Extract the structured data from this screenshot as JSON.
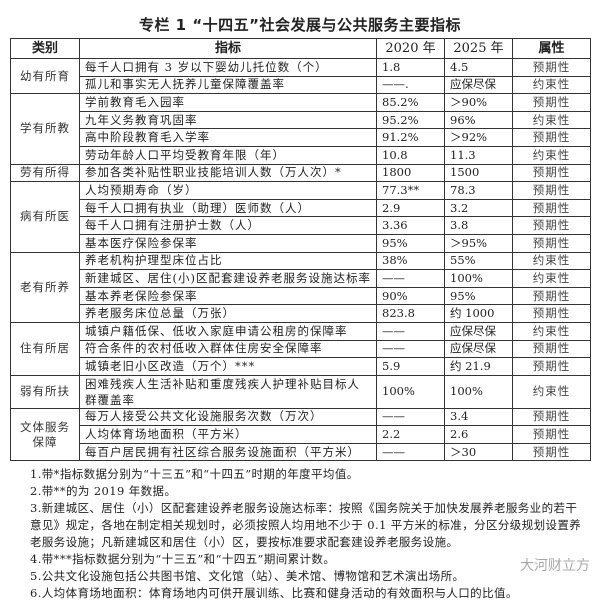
{
  "title": "专栏 1 “十四五”社会发展与公共服务主要指标",
  "headers": [
    "类别",
    "指标",
    "2020 年",
    "2025 年",
    "属性"
  ],
  "groups": [
    {
      "category": "幼有所育",
      "rows": [
        {
          "indicator": "每千人口拥有 3 岁以下婴幼儿托位数（个）",
          "y2020": "1.8",
          "y2025": "4.5",
          "attr": "预期性"
        },
        {
          "indicator": "孤儿和事实无人抚养儿童保障覆盖率",
          "y2020": "——.",
          "y2025": "应保尽保",
          "attr": "约束性"
        }
      ]
    },
    {
      "category": "学有所教",
      "rows": [
        {
          "indicator": "学前教育毛入园率",
          "y2020": "85.2%",
          "y2025": "＞90%",
          "attr": "预期性"
        },
        {
          "indicator": "九年义务教育巩固率",
          "y2020": "95.2%",
          "y2025": "96%",
          "attr": "约束性"
        },
        {
          "indicator": "高中阶段教育毛入学率",
          "y2020": "91.2%",
          "y2025": "＞92%",
          "attr": "预期性"
        },
        {
          "indicator": "劳动年龄人口平均受教育年限（年）",
          "y2020": "10.8",
          "y2025": "11.3",
          "attr": "约束性"
        }
      ]
    },
    {
      "category": "劳有所得",
      "rows": [
        {
          "indicator": "参加各类补贴性职业技能培训人数（万人次）*",
          "y2020": "1800",
          "y2025": "1500",
          "attr": "预期性"
        }
      ]
    },
    {
      "category": "病有所医",
      "rows": [
        {
          "indicator": "人均预期寿命（岁）",
          "y2020": "77.3**",
          "y2025": "78.3",
          "attr": "预期性"
        },
        {
          "indicator": "每千人口拥有执业（助理）医师数（人）",
          "y2020": "2.9",
          "y2025": "3.2",
          "attr": "预期性"
        },
        {
          "indicator": "每千人口拥有注册护士数（人）",
          "y2020": "3.36",
          "y2025": "3.8",
          "attr": "预期性"
        },
        {
          "indicator": "基本医疗保险参保率",
          "y2020": "95%",
          "y2025": "＞95%",
          "attr": "预期性"
        }
      ]
    },
    {
      "category": "老有所养",
      "rows": [
        {
          "indicator": "养老机构护理型床位占比",
          "y2020": "38%",
          "y2025": "55%",
          "attr": "约束性"
        },
        {
          "indicator": "新建城区、居住(小)区配套建设养老服务设施达标率",
          "y2020": "——",
          "y2025": "100%",
          "attr": "约束性"
        },
        {
          "indicator": "基本养老保险参保率",
          "y2020": "90%",
          "y2025": "95%",
          "attr": "预期性"
        },
        {
          "indicator": "养老服务床位总量（万张）",
          "y2020": "823.8",
          "y2025": "约 1000",
          "attr": "预期性"
        }
      ]
    },
    {
      "category": "住有所居",
      "rows": [
        {
          "indicator": "城镇户籍低保、低收入家庭申请公租房的保障率",
          "y2020": "——",
          "y2025": "应保尽保",
          "attr": "约束性"
        },
        {
          "indicator": "符合条件的农村低收入群体住房安全保障率",
          "y2020": "——",
          "y2025": "应保尽保",
          "attr": "预期性"
        },
        {
          "indicator": "城镇老旧小区改造（万个）***",
          "y2020": "5.9",
          "y2025": "约 21.9",
          "attr": "预期性"
        }
      ]
    },
    {
      "category": "弱有所扶",
      "rows": [
        {
          "indicator": "困难残疾人生活补贴和重度残疾人护理补贴目标人群覆盖率",
          "y2020": "100%",
          "y2025": "100%",
          "attr": "约束性"
        }
      ]
    },
    {
      "category": "文体服务保障",
      "rows": [
        {
          "indicator": "每万人接受公共文化设施服务次数（万次）",
          "y2020": "——",
          "y2025": "3.4",
          "attr": "预期性"
        },
        {
          "indicator": "人均体育场地面积（平方米）",
          "y2020": "2.2",
          "y2025": "2.6",
          "attr": "预期性"
        },
        {
          "indicator": "每百户居民拥有社区综合服务设施面积（平方米）",
          "y2020": "——",
          "y2025": "＞30",
          "attr": "预期性"
        }
      ]
    }
  ],
  "notes": [
    "1.带*指标数据分别为“十三五”和“十四五”时期的年度平均值。",
    "2.带**的为 2019 年数据。",
    "3.新建城区、居住（小）区配套建设养老服务设施达标率：按照《国务院关于加快发展养老服务业的若干意见》规定，各地在制定相关规划时，必须按照人均用地不少于 0.1 平方米的标准，分区分级规划设置养老服务设施；凡新建城区和居住（小）区，要按标准要求配套建设养老服务设施。",
    "4.带***指标数据分别为“十三五”和“十四五”期间累计数。",
    "5.公共文化设施包括公共图书馆、文化馆（站）、美术馆、博物馆和艺术演出场所。",
    "6.人均体育场地面积：体育场地内可供开展训练、比赛和健身活动的有效面积与人口的比值。"
  ],
  "watermark": "大河财立方"
}
